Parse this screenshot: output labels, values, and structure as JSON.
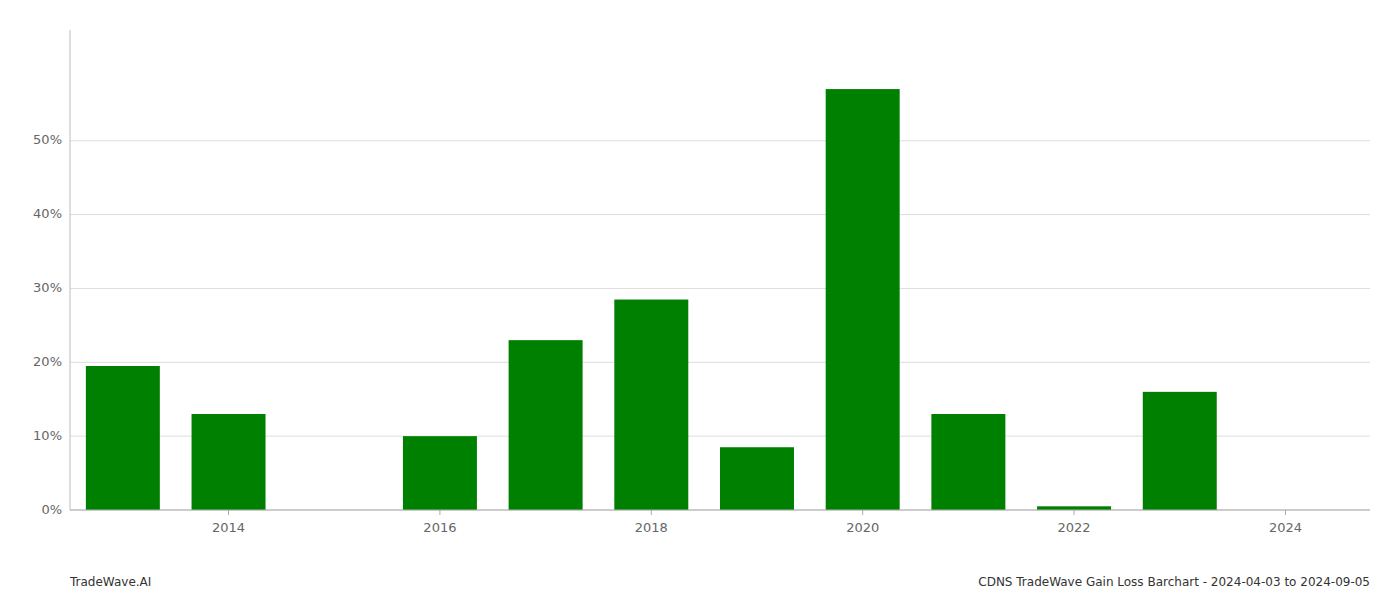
{
  "chart_data": {
    "type": "bar",
    "x": [
      2013,
      2014,
      2015,
      2016,
      2017,
      2018,
      2019,
      2020,
      2021,
      2022,
      2023,
      2024
    ],
    "values": [
      0.195,
      0.13,
      0.0,
      0.1,
      0.23,
      0.285,
      0.085,
      0.57,
      0.13,
      0.005,
      0.16,
      0.0
    ],
    "color": "#008000",
    "xlim": [
      2012.5,
      2024.8
    ],
    "xticks": [
      2014,
      2016,
      2018,
      2020,
      2022,
      2024
    ],
    "ylim": [
      0,
      0.65
    ],
    "yticks": [
      {
        "value": 0.0,
        "label": "0%"
      },
      {
        "value": 0.1,
        "label": "10%"
      },
      {
        "value": 0.2,
        "label": "20%"
      },
      {
        "value": 0.3,
        "label": "30%"
      },
      {
        "value": 0.4,
        "label": "40%"
      },
      {
        "value": 0.5,
        "label": "50%"
      }
    ],
    "grid": true,
    "annotations": [
      "TradeWave.AI",
      "CDNS TradeWave Gain Loss Barchart - 2024-04-03 to 2024-09-05"
    ]
  }
}
